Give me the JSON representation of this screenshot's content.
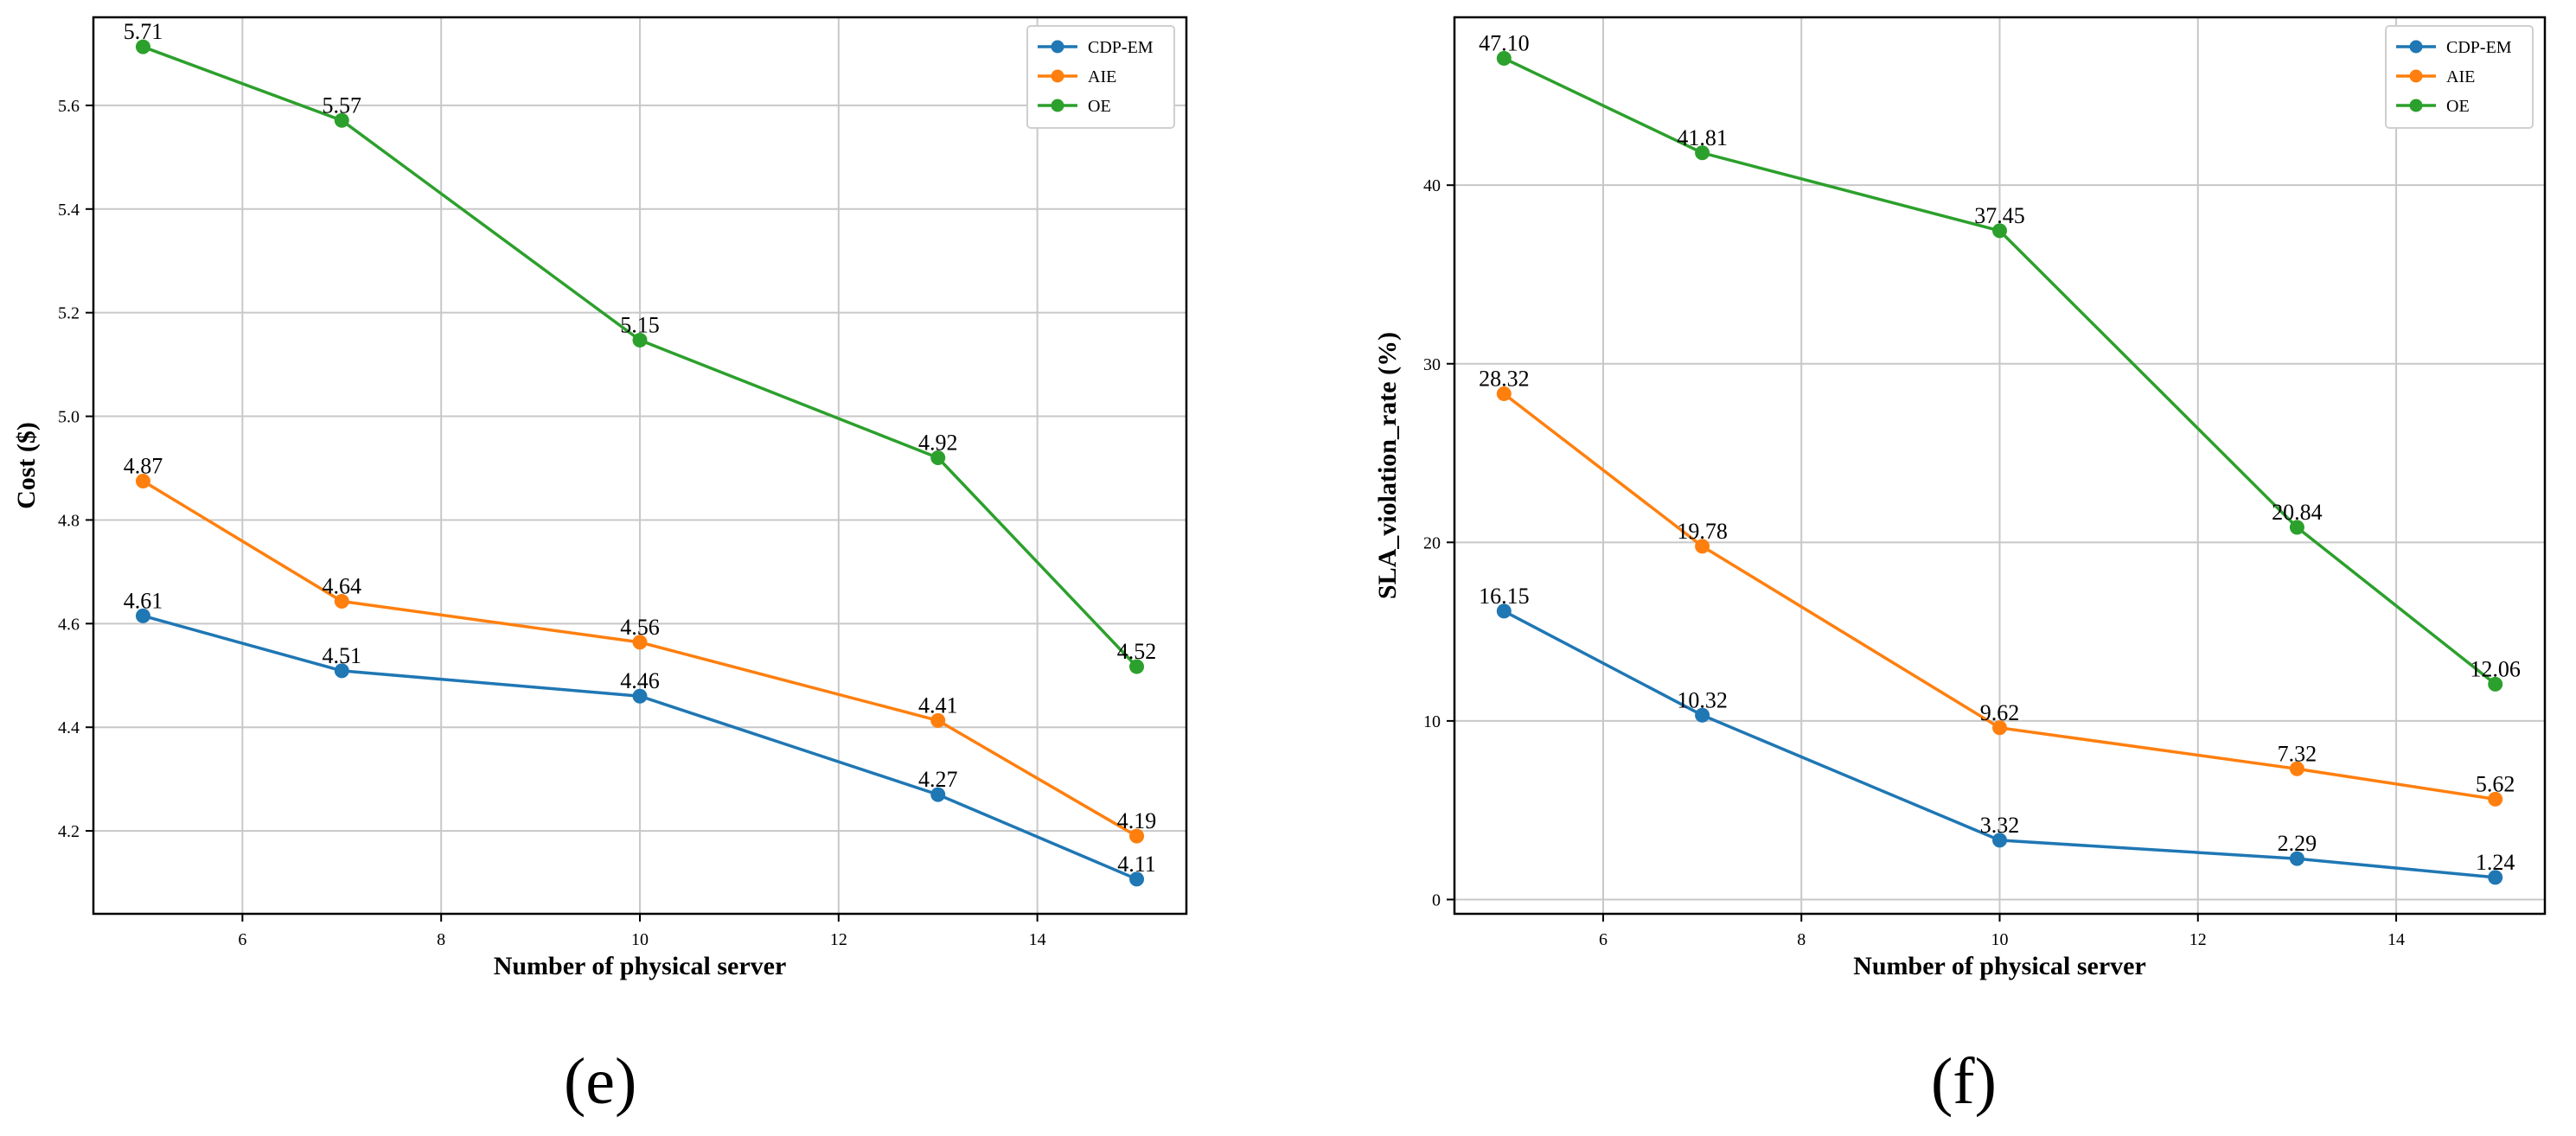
{
  "chart_data": [
    {
      "type": "line",
      "panel_label": "(e)",
      "title": "",
      "xlabel": "Number of physical server",
      "ylabel": "Cost ($)",
      "x": [
        5,
        7,
        10,
        13,
        15
      ],
      "xlim": [
        4.5,
        15.5
      ],
      "ylim": [
        4.04,
        5.77
      ],
      "xticks": [
        6,
        8,
        10,
        12,
        14
      ],
      "yticks": [
        4.2,
        4.4,
        4.6,
        4.8,
        5.0,
        5.2,
        5.4,
        5.6
      ],
      "ytick_labels": [
        "4.2",
        "4.4",
        "4.6",
        "4.8",
        "5.0",
        "5.2",
        "5.4",
        "5.6"
      ],
      "grid": true,
      "legend_position": "top-right",
      "series": [
        {
          "name": "CDP-EM",
          "color": "#1f77b4",
          "values": [
            4.615,
            4.509,
            4.46,
            4.27,
            4.107
          ],
          "labels": [
            "4.61",
            "4.51",
            "4.46",
            "4.27",
            "4.11"
          ]
        },
        {
          "name": "AIE",
          "color": "#ff7f0e",
          "values": [
            4.875,
            4.643,
            4.564,
            4.413,
            4.19
          ],
          "labels": [
            "4.87",
            "4.64",
            "4.56",
            "4.41",
            "4.19"
          ]
        },
        {
          "name": "OE",
          "color": "#2ca02c",
          "values": [
            5.713,
            5.571,
            5.147,
            4.92,
            4.517
          ],
          "labels": [
            "5.71",
            "5.57",
            "5.15",
            "4.92",
            "4.52"
          ]
        }
      ]
    },
    {
      "type": "line",
      "panel_label": "(f)",
      "title": "",
      "xlabel": "Number of physical server",
      "ylabel": "SLA_violation_rate (%)",
      "x": [
        5,
        7,
        10,
        13,
        15
      ],
      "xlim": [
        4.5,
        15.5
      ],
      "ylim": [
        -0.8,
        49.4
      ],
      "xticks": [
        6,
        8,
        10,
        12,
        14
      ],
      "yticks": [
        0,
        10,
        20,
        30,
        40
      ],
      "ytick_labels": [
        "0",
        "10",
        "20",
        "30",
        "40"
      ],
      "grid": true,
      "legend_position": "top-right",
      "series": [
        {
          "name": "CDP-EM",
          "color": "#1f77b4",
          "values": [
            16.15,
            10.32,
            3.32,
            2.29,
            1.24
          ],
          "labels": [
            "16.15",
            "10.32",
            "3.32",
            "2.29",
            "1.24"
          ]
        },
        {
          "name": "AIE",
          "color": "#ff7f0e",
          "values": [
            28.32,
            19.78,
            9.62,
            7.32,
            5.62
          ],
          "labels": [
            "28.32",
            "19.78",
            "9.62",
            "7.32",
            "5.62"
          ]
        },
        {
          "name": "OE",
          "color": "#2ca02c",
          "values": [
            47.1,
            41.81,
            37.45,
            20.84,
            12.06
          ],
          "labels": [
            "47.10",
            "41.81",
            "37.45",
            "20.84",
            "12.06"
          ]
        }
      ]
    }
  ]
}
